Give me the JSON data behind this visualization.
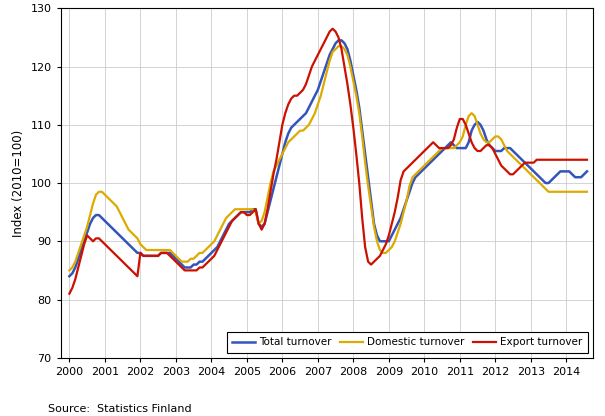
{
  "title": "",
  "ylabel": "Index (2010=100)",
  "source_text": "Source:  Statistics Finland",
  "ylim": [
    70,
    130
  ],
  "xlim": [
    1999.75,
    2014.75
  ],
  "yticks": [
    70,
    80,
    90,
    100,
    110,
    120,
    130
  ],
  "xticks": [
    2000,
    2001,
    2002,
    2003,
    2004,
    2005,
    2006,
    2007,
    2008,
    2009,
    2010,
    2011,
    2012,
    2013,
    2014
  ],
  "line_colors": {
    "total": "#3355bb",
    "domestic": "#ddaa00",
    "export": "#cc1100"
  },
  "line_widths": {
    "total": 1.8,
    "domestic": 1.6,
    "export": 1.6
  },
  "legend_labels": [
    "Total turnover",
    "Domestic turnover",
    "Export turnover"
  ],
  "background_color": "#ffffff",
  "grid_color": "#cccccc",
  "total_x": [
    2000.0,
    2000.083,
    2000.167,
    2000.25,
    2000.333,
    2000.417,
    2000.5,
    2000.583,
    2000.667,
    2000.75,
    2000.833,
    2000.917,
    2001.0,
    2001.083,
    2001.167,
    2001.25,
    2001.333,
    2001.417,
    2001.5,
    2001.583,
    2001.667,
    2001.75,
    2001.833,
    2001.917,
    2002.0,
    2002.083,
    2002.167,
    2002.25,
    2002.333,
    2002.417,
    2002.5,
    2002.583,
    2002.667,
    2002.75,
    2002.833,
    2002.917,
    2003.0,
    2003.083,
    2003.167,
    2003.25,
    2003.333,
    2003.417,
    2003.5,
    2003.583,
    2003.667,
    2003.75,
    2003.833,
    2003.917,
    2004.0,
    2004.083,
    2004.167,
    2004.25,
    2004.333,
    2004.417,
    2004.5,
    2004.583,
    2004.667,
    2004.75,
    2004.833,
    2004.917,
    2005.0,
    2005.083,
    2005.167,
    2005.25,
    2005.333,
    2005.417,
    2005.5,
    2005.583,
    2005.667,
    2005.75,
    2005.833,
    2005.917,
    2006.0,
    2006.083,
    2006.167,
    2006.25,
    2006.333,
    2006.417,
    2006.5,
    2006.583,
    2006.667,
    2006.75,
    2006.833,
    2006.917,
    2007.0,
    2007.083,
    2007.167,
    2007.25,
    2007.333,
    2007.417,
    2007.5,
    2007.583,
    2007.667,
    2007.75,
    2007.833,
    2007.917,
    2008.0,
    2008.083,
    2008.167,
    2008.25,
    2008.333,
    2008.417,
    2008.5,
    2008.583,
    2008.667,
    2008.75,
    2008.833,
    2008.917,
    2009.0,
    2009.083,
    2009.167,
    2009.25,
    2009.333,
    2009.417,
    2009.5,
    2009.583,
    2009.667,
    2009.75,
    2009.833,
    2009.917,
    2010.0,
    2010.083,
    2010.167,
    2010.25,
    2010.333,
    2010.417,
    2010.5,
    2010.583,
    2010.667,
    2010.75,
    2010.833,
    2010.917,
    2011.0,
    2011.083,
    2011.167,
    2011.25,
    2011.333,
    2011.417,
    2011.5,
    2011.583,
    2011.667,
    2011.75,
    2011.833,
    2011.917,
    2012.0,
    2012.083,
    2012.167,
    2012.25,
    2012.333,
    2012.417,
    2012.5,
    2012.583,
    2012.667,
    2012.75,
    2012.833,
    2012.917,
    2013.0,
    2013.083,
    2013.167,
    2013.25,
    2013.333,
    2013.417,
    2013.5,
    2013.583,
    2013.667,
    2013.75,
    2013.833,
    2013.917,
    2014.0,
    2014.083,
    2014.167,
    2014.25,
    2014.333,
    2014.417,
    2014.5,
    2014.583
  ],
  "total_y": [
    84.0,
    84.5,
    85.5,
    87.0,
    88.5,
    90.0,
    91.5,
    93.0,
    94.0,
    94.5,
    94.5,
    94.0,
    93.5,
    93.0,
    92.5,
    92.0,
    91.5,
    91.0,
    90.5,
    90.0,
    89.5,
    89.0,
    88.5,
    88.0,
    88.0,
    87.5,
    87.5,
    87.5,
    87.5,
    87.5,
    87.5,
    88.0,
    88.0,
    88.0,
    88.0,
    87.5,
    87.0,
    86.5,
    86.0,
    85.5,
    85.5,
    85.5,
    86.0,
    86.0,
    86.5,
    86.5,
    87.0,
    87.5,
    88.0,
    88.5,
    89.0,
    90.0,
    91.0,
    92.0,
    93.0,
    93.5,
    94.0,
    94.5,
    95.0,
    95.0,
    95.0,
    95.0,
    95.5,
    95.5,
    93.0,
    92.5,
    93.0,
    95.0,
    97.0,
    99.0,
    101.0,
    103.0,
    105.0,
    107.0,
    108.5,
    109.5,
    110.0,
    110.5,
    111.0,
    111.5,
    112.0,
    113.0,
    114.0,
    115.0,
    116.0,
    117.5,
    119.0,
    120.5,
    122.0,
    123.0,
    124.0,
    124.5,
    124.5,
    124.0,
    123.0,
    121.0,
    118.5,
    116.0,
    113.0,
    109.0,
    105.0,
    101.0,
    97.0,
    93.0,
    91.0,
    90.0,
    90.0,
    90.0,
    90.0,
    91.0,
    92.0,
    93.0,
    94.0,
    95.5,
    97.0,
    98.5,
    100.0,
    101.0,
    101.5,
    102.0,
    102.5,
    103.0,
    103.5,
    104.0,
    104.5,
    105.0,
    105.5,
    106.0,
    106.5,
    107.0,
    106.5,
    106.0,
    106.0,
    106.0,
    106.0,
    107.0,
    109.0,
    110.0,
    110.5,
    110.0,
    109.0,
    107.5,
    106.5,
    106.0,
    105.5,
    105.5,
    105.5,
    106.0,
    106.0,
    106.0,
    105.5,
    105.0,
    104.5,
    104.0,
    103.5,
    103.0,
    102.5,
    102.0,
    101.5,
    101.0,
    100.5,
    100.0,
    100.0,
    100.5,
    101.0,
    101.5,
    102.0,
    102.0,
    102.0,
    102.0,
    101.5,
    101.0,
    101.0,
    101.0,
    101.5,
    102.0
  ],
  "domestic_y": [
    85.0,
    85.5,
    86.5,
    88.0,
    89.5,
    91.0,
    92.5,
    94.5,
    96.5,
    98.0,
    98.5,
    98.5,
    98.0,
    97.5,
    97.0,
    96.5,
    96.0,
    95.0,
    94.0,
    93.0,
    92.0,
    91.5,
    91.0,
    90.5,
    89.5,
    89.0,
    88.5,
    88.5,
    88.5,
    88.5,
    88.5,
    88.5,
    88.5,
    88.5,
    88.5,
    88.0,
    87.5,
    87.0,
    86.5,
    86.5,
    86.5,
    87.0,
    87.0,
    87.5,
    88.0,
    88.0,
    88.5,
    89.0,
    89.5,
    90.0,
    91.0,
    92.0,
    93.0,
    94.0,
    94.5,
    95.0,
    95.5,
    95.5,
    95.5,
    95.5,
    95.5,
    95.5,
    95.5,
    95.0,
    93.0,
    93.5,
    95.0,
    97.5,
    100.0,
    102.0,
    103.0,
    104.0,
    105.0,
    106.0,
    107.0,
    107.5,
    108.0,
    108.5,
    109.0,
    109.0,
    109.5,
    110.0,
    111.0,
    112.0,
    113.5,
    115.0,
    117.0,
    119.0,
    121.0,
    122.5,
    123.0,
    123.5,
    123.5,
    123.0,
    122.0,
    120.0,
    117.5,
    115.0,
    112.0,
    108.0,
    103.5,
    99.5,
    96.0,
    92.5,
    90.0,
    88.5,
    88.0,
    88.0,
    88.5,
    89.0,
    90.0,
    91.5,
    93.0,
    95.0,
    97.0,
    99.5,
    101.0,
    101.5,
    102.0,
    102.5,
    103.0,
    103.5,
    104.0,
    104.5,
    105.0,
    105.5,
    106.0,
    106.0,
    106.0,
    106.0,
    106.0,
    106.5,
    107.0,
    108.0,
    110.0,
    111.5,
    112.0,
    111.5,
    110.0,
    108.5,
    107.5,
    107.0,
    107.0,
    107.5,
    108.0,
    108.0,
    107.5,
    106.5,
    105.5,
    105.0,
    104.5,
    104.0,
    103.5,
    103.0,
    102.5,
    102.0,
    101.5,
    101.0,
    100.5,
    100.0,
    99.5,
    99.0,
    98.5,
    98.5,
    98.5,
    98.5,
    98.5,
    98.5,
    98.5,
    98.5,
    98.5,
    98.5,
    98.5,
    98.5,
    98.5,
    98.5
  ],
  "export_y": [
    81.0,
    82.0,
    83.5,
    85.5,
    87.5,
    89.5,
    91.0,
    90.5,
    90.0,
    90.5,
    90.5,
    90.0,
    89.5,
    89.0,
    88.5,
    88.0,
    87.5,
    87.0,
    86.5,
    86.0,
    85.5,
    85.0,
    84.5,
    84.0,
    88.0,
    87.5,
    87.5,
    87.5,
    87.5,
    87.5,
    87.5,
    88.0,
    88.0,
    88.0,
    87.5,
    87.0,
    86.5,
    86.0,
    85.5,
    85.0,
    85.0,
    85.0,
    85.0,
    85.0,
    85.5,
    85.5,
    86.0,
    86.5,
    87.0,
    87.5,
    88.5,
    89.5,
    90.5,
    91.5,
    92.5,
    93.5,
    94.0,
    94.5,
    95.0,
    95.0,
    94.5,
    94.5,
    95.0,
    95.5,
    93.0,
    92.0,
    93.0,
    95.5,
    98.5,
    101.5,
    104.0,
    107.0,
    110.0,
    112.0,
    113.5,
    114.5,
    115.0,
    115.0,
    115.5,
    116.0,
    117.0,
    118.5,
    120.0,
    121.0,
    122.0,
    123.0,
    124.0,
    125.0,
    126.0,
    126.5,
    126.0,
    125.0,
    123.0,
    120.0,
    117.0,
    113.5,
    109.5,
    105.0,
    100.0,
    94.0,
    89.0,
    86.5,
    86.0,
    86.5,
    87.0,
    87.5,
    88.5,
    89.5,
    91.0,
    93.0,
    95.0,
    97.5,
    100.5,
    102.0,
    102.5,
    103.0,
    103.5,
    104.0,
    104.5,
    105.0,
    105.5,
    106.0,
    106.5,
    107.0,
    106.5,
    106.0,
    106.0,
    106.0,
    106.0,
    106.5,
    107.5,
    109.5,
    111.0,
    111.0,
    110.0,
    108.5,
    107.0,
    106.0,
    105.5,
    105.5,
    106.0,
    106.5,
    106.5,
    106.0,
    105.0,
    104.0,
    103.0,
    102.5,
    102.0,
    101.5,
    101.5,
    102.0,
    102.5,
    103.0,
    103.5,
    103.5,
    103.5,
    103.5,
    104.0,
    104.0,
    104.0,
    104.0,
    104.0,
    104.0,
    104.0,
    104.0,
    104.0,
    104.0,
    104.0,
    104.0,
    104.0,
    104.0,
    104.0,
    104.0,
    104.0,
    104.0
  ]
}
